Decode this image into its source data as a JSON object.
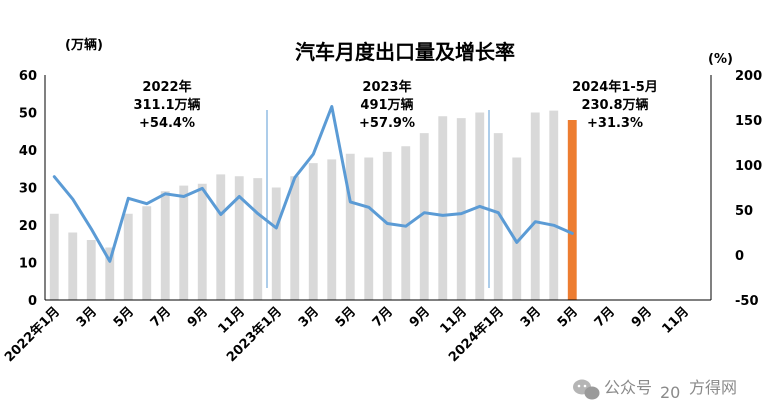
{
  "chart_data": {
    "type": "bar+line",
    "title": "汽车月度出口量及增长率",
    "left_unit": "(万辆)",
    "right_unit": "(%)",
    "ylim_left": [
      0,
      60
    ],
    "ylim_right": [
      -50,
      200
    ],
    "left_ticks": [
      "0",
      "10",
      "20",
      "30",
      "40",
      "50",
      "60"
    ],
    "right_ticks": [
      "-50",
      "0",
      "50",
      "100",
      "150",
      "200"
    ],
    "x_tick_labels": [
      "2022年1月",
      "3月",
      "5月",
      "7月",
      "9月",
      "11月",
      "2023年1月",
      "3月",
      "5月",
      "7月",
      "9月",
      "11月",
      "2024年1月",
      "3月",
      "5月",
      "7月",
      "9月",
      "11月"
    ],
    "months": [
      "2022-01",
      "2022-02",
      "2022-03",
      "2022-04",
      "2022-05",
      "2022-06",
      "2022-07",
      "2022-08",
      "2022-09",
      "2022-10",
      "2022-11",
      "2022-12",
      "2023-01",
      "2023-02",
      "2023-03",
      "2023-04",
      "2023-05",
      "2023-06",
      "2023-07",
      "2023-08",
      "2023-09",
      "2023-10",
      "2023-11",
      "2023-12",
      "2024-01",
      "2024-02",
      "2024-03",
      "2024-04",
      "2024-05",
      "2024-06",
      "2024-07",
      "2024-08",
      "2024-09",
      "2024-10",
      "2024-11",
      "2024-12"
    ],
    "bars": [
      23,
      18,
      16,
      14,
      23,
      25,
      29,
      30.5,
      31,
      33.5,
      33,
      32.5,
      30,
      33,
      36.5,
      37.5,
      39,
      38,
      39.5,
      41,
      44.5,
      49,
      48.5,
      50,
      44.5,
      38,
      50,
      50.5,
      48,
      null,
      null,
      null,
      null,
      null,
      null,
      null
    ],
    "bar_colors": {
      "default": "#d9d9d9",
      "highlight": "#ed7d31"
    },
    "highlight_index": 28,
    "growth": [
      87,
      62,
      29,
      -7,
      63,
      57,
      68,
      65,
      74,
      45,
      65,
      46,
      30,
      86,
      112,
      165,
      59,
      53,
      35,
      32,
      47,
      44,
      46,
      54,
      47,
      14,
      37,
      33,
      24
    ],
    "line_color": "#5b9bd5",
    "dividers_after_index": [
      11,
      23
    ],
    "divider_color": "#5b9bd5",
    "annotations": [
      {
        "lines": [
          "2022年",
          "311.1万辆",
          "+54.4%"
        ]
      },
      {
        "lines": [
          "2023年",
          "491万辆",
          "+57.9%"
        ]
      },
      {
        "lines": [
          "2024年1-5月",
          "230.8万辆",
          "+31.3%"
        ]
      }
    ],
    "grid": false,
    "legend": "none"
  },
  "watermark": {
    "icon": "wechat-icon",
    "prefix": "公众号",
    "suffix": "方得网",
    "overlap": "20"
  }
}
